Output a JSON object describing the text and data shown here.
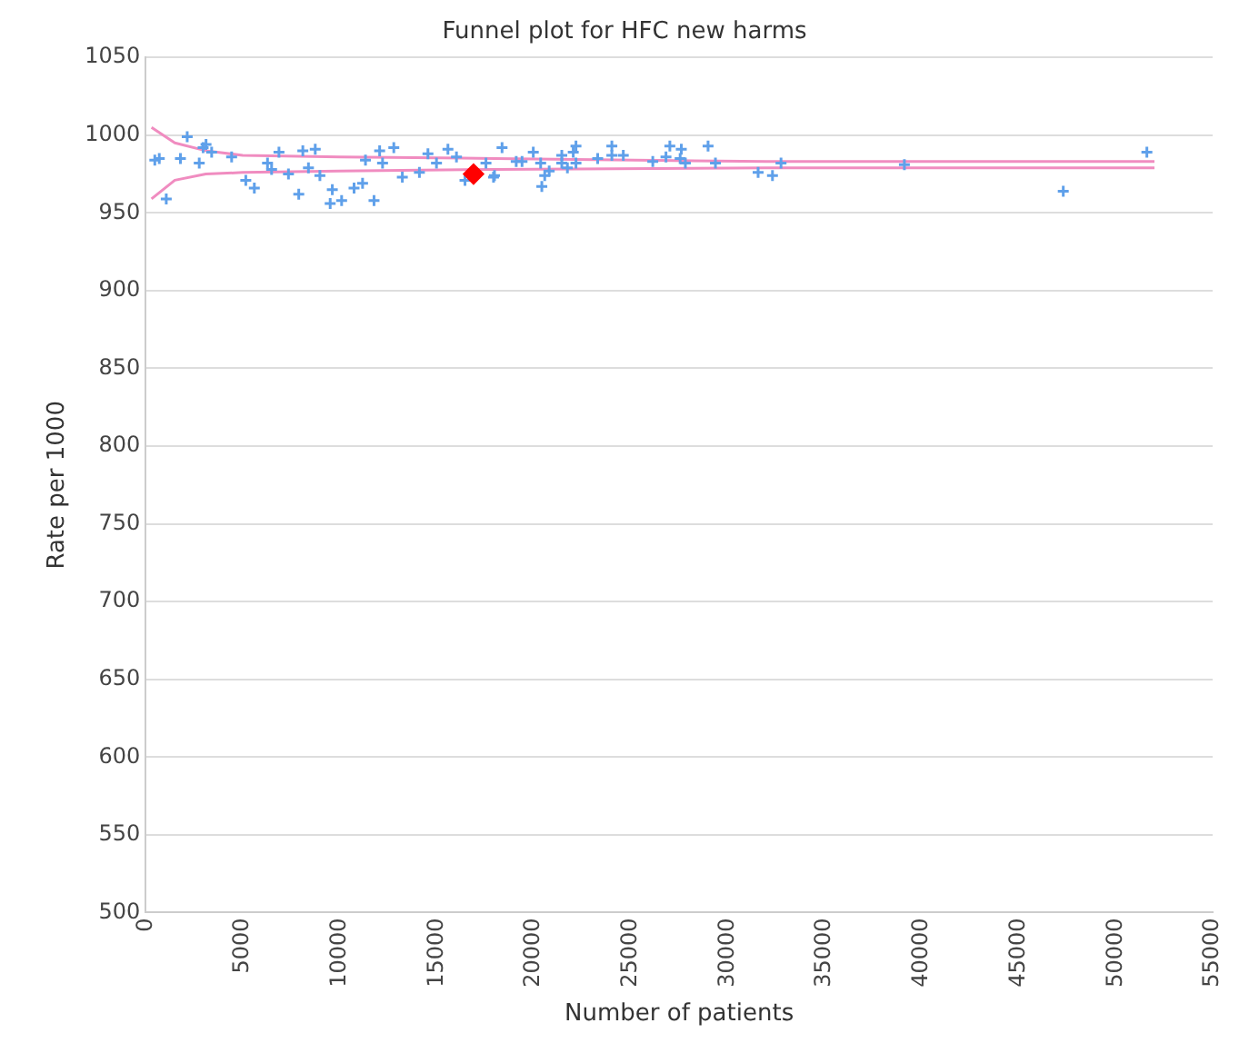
{
  "chart_data": {
    "type": "scatter",
    "title": "Funnel plot for HFC new harms",
    "xlabel": "Number of patients",
    "ylabel": "Rate per 1000",
    "xlim": [
      0,
      55000
    ],
    "xticks": [
      0,
      5000,
      10000,
      15000,
      20000,
      25000,
      30000,
      35000,
      40000,
      45000,
      50000,
      55000
    ],
    "ylim": [
      500,
      1050
    ],
    "yticks": [
      500,
      550,
      600,
      650,
      700,
      750,
      800,
      850,
      900,
      950,
      1000,
      1050
    ],
    "grid": "y",
    "legend": false,
    "series": [
      {
        "type": "line",
        "color": "#f08cc0",
        "marker": "none",
        "line_style": "solid",
        "x": [
          300,
          1500,
          3100,
          5000,
          10000,
          18000,
          32000,
          52000
        ],
        "values": [
          1005,
          995,
          990,
          987,
          986,
          985,
          983,
          983
        ]
      },
      {
        "type": "line",
        "color": "#f08cc0",
        "marker": "none",
        "line_style": "solid",
        "x": [
          300,
          1500,
          3100,
          5000,
          10000,
          18000,
          32000,
          52000
        ],
        "values": [
          959,
          971,
          975,
          976,
          977,
          978,
          979,
          979
        ]
      },
      {
        "type": "scatter",
        "color": "#5fa0ea",
        "marker": "cross",
        "x": [
          470,
          700,
          1060,
          1790,
          2140,
          2760,
          2960,
          3110,
          3400,
          4430,
          5160,
          5600,
          6280,
          6490,
          6870,
          7360,
          7890,
          8100,
          8390,
          8740,
          8980,
          9510,
          9620,
          10100,
          10740,
          11180,
          11330,
          11770,
          12060,
          12210,
          12790,
          13230,
          14110,
          14550,
          14990,
          15580,
          16020,
          16460,
          17540,
          17980,
          18370,
          17930,
          19100,
          19400,
          19980,
          20360,
          20420,
          20570,
          20800,
          21450,
          21450,
          21740,
          22040,
          22180,
          22180,
          23300,
          24030,
          24030,
          24620,
          26140,
          26820,
          27020,
          27610,
          27550,
          27820,
          28990,
          29370,
          31570,
          32310,
          32750,
          39110,
          47300,
          51610
        ],
        "values": [
          984,
          985,
          959,
          985,
          999,
          982,
          992,
          994,
          989,
          986,
          971,
          966,
          982,
          978,
          989,
          975,
          962,
          990,
          979,
          991,
          974,
          956,
          965,
          958,
          966,
          969,
          984,
          958,
          990,
          982,
          992,
          973,
          976,
          988,
          982,
          991,
          986,
          971,
          982,
          974,
          992,
          973,
          983,
          983,
          989,
          982,
          967,
          974,
          977,
          987,
          982,
          979,
          989,
          993,
          982,
          985,
          993,
          987,
          987,
          983,
          986,
          993,
          991,
          985,
          982,
          993,
          982,
          976,
          974,
          982,
          981,
          964,
          989
        ]
      },
      {
        "type": "scatter",
        "color": "#ff0000",
        "marker": "diamond",
        "x": [
          16900
        ],
        "values": [
          975
        ]
      }
    ]
  }
}
